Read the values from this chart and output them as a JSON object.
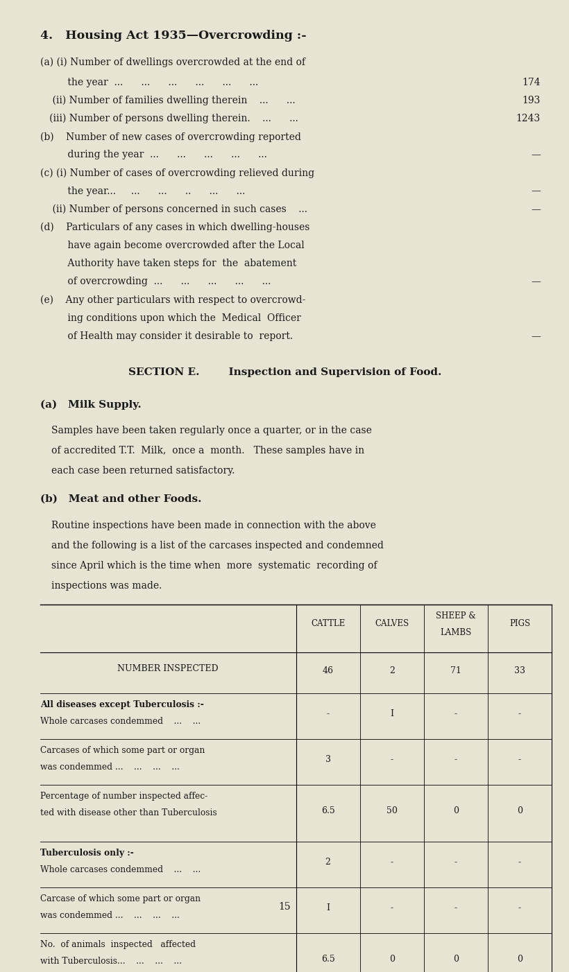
{
  "bg_color": "#e8e4d4",
  "text_color": "#1a1a1a",
  "page_width": 8.01,
  "page_height": 13.73,
  "title": "4.   Housing Act 1935—Overcrowding :-",
  "section_e_title": "SECTION E.        Inspection and Supervision of Food.",
  "milk_heading": "(a)   Milk Supply.",
  "milk_text1": "Samples have been taken regularly once a quarter, or in the case",
  "milk_text2": "of accredited T.T.  Milk,  once a  month.   These samples have in",
  "milk_text3": "each case been returned satisfactory.",
  "meat_heading": "(b)   Meat and other Foods.",
  "meat_text1": "Routine inspections have been made in connection with the above",
  "meat_text2": "and the following is a list of the carcases inspected and condemned",
  "meat_text3": "since April which is the time when  more  systematic  recording of",
  "meat_text4": "inspections was made.",
  "table_headers": [
    "CATTLE",
    "CALVES",
    "SHEEP &\nLAMBS",
    "PIGS"
  ],
  "table_rows": [
    {
      "label": "NUMBER INSPECTED",
      "values": [
        "46",
        "2",
        "71",
        "33"
      ],
      "bold_first_line": false,
      "smallcaps": true
    },
    {
      "label": "All diseases except Tuberculosis :-\nWhole carcases condemmed    ...    ...",
      "values": [
        "-",
        "I",
        "-",
        "-"
      ],
      "bold_first_line": true
    },
    {
      "label": "Carcases of which some part or organ\nwas condemmed ...    ...    ...    ...",
      "values": [
        "3",
        "-",
        "-",
        "-"
      ],
      "bold_first_line": false
    },
    {
      "label": "Percentage of number inspected affec-\nted with disease other than Tuberculosis",
      "values": [
        "6.5",
        "50",
        "0",
        "0"
      ],
      "bold_first_line": false
    },
    {
      "label": "Tuberculosis only :-\nWhole carcases condemmed    ...    ...",
      "values": [
        "2",
        "-",
        "-",
        "-"
      ],
      "bold_first_line": true
    },
    {
      "label": "Carcase of which some part or organ\nwas condemmed ...    ...    ...    ...",
      "values": [
        "I",
        "-",
        "-",
        "-"
      ],
      "bold_first_line": false
    },
    {
      "label": "No.  of animals  inspected   affected\nwith Tuberculosis...    ...    ...    ...",
      "values": [
        "6.5",
        "0",
        "0",
        "0"
      ],
      "bold_first_line": false
    }
  ],
  "page_number": "15"
}
